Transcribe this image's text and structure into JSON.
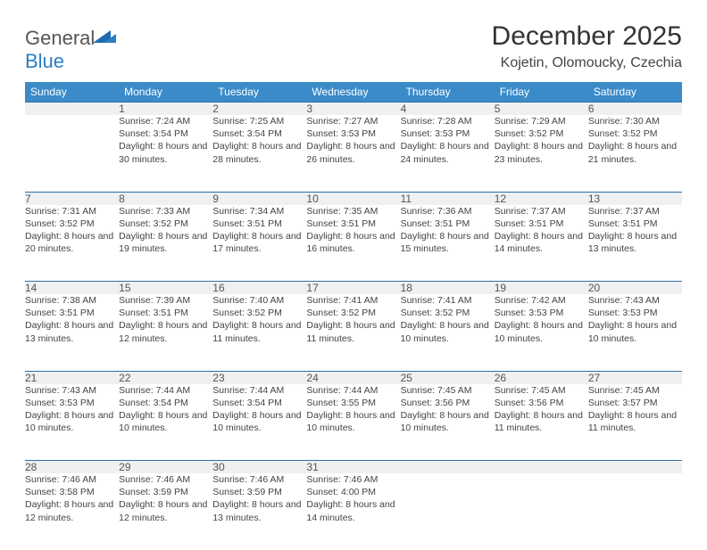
{
  "brand": {
    "part1": "General",
    "part2": "Blue"
  },
  "title": "December 2025",
  "location": "Kojetin, Olomoucky, Czechia",
  "colors": {
    "header_bg": "#3b8bc9",
    "header_text": "#ffffff",
    "daynum_bg": "#eef0f2",
    "row_border": "#2f6fa6",
    "body_text": "#444444",
    "brand_blue": "#2b7fc4"
  },
  "weekdays": [
    "Sunday",
    "Monday",
    "Tuesday",
    "Wednesday",
    "Thursday",
    "Friday",
    "Saturday"
  ],
  "weeks": [
    {
      "nums": [
        "",
        "1",
        "2",
        "3",
        "4",
        "5",
        "6"
      ],
      "cells": [
        "",
        "Sunrise: 7:24 AM\nSunset: 3:54 PM\nDaylight: 8 hours and 30 minutes.",
        "Sunrise: 7:25 AM\nSunset: 3:54 PM\nDaylight: 8 hours and 28 minutes.",
        "Sunrise: 7:27 AM\nSunset: 3:53 PM\nDaylight: 8 hours and 26 minutes.",
        "Sunrise: 7:28 AM\nSunset: 3:53 PM\nDaylight: 8 hours and 24 minutes.",
        "Sunrise: 7:29 AM\nSunset: 3:52 PM\nDaylight: 8 hours and 23 minutes.",
        "Sunrise: 7:30 AM\nSunset: 3:52 PM\nDaylight: 8 hours and 21 minutes."
      ]
    },
    {
      "nums": [
        "7",
        "8",
        "9",
        "10",
        "11",
        "12",
        "13"
      ],
      "cells": [
        "Sunrise: 7:31 AM\nSunset: 3:52 PM\nDaylight: 8 hours and 20 minutes.",
        "Sunrise: 7:33 AM\nSunset: 3:52 PM\nDaylight: 8 hours and 19 minutes.",
        "Sunrise: 7:34 AM\nSunset: 3:51 PM\nDaylight: 8 hours and 17 minutes.",
        "Sunrise: 7:35 AM\nSunset: 3:51 PM\nDaylight: 8 hours and 16 minutes.",
        "Sunrise: 7:36 AM\nSunset: 3:51 PM\nDaylight: 8 hours and 15 minutes.",
        "Sunrise: 7:37 AM\nSunset: 3:51 PM\nDaylight: 8 hours and 14 minutes.",
        "Sunrise: 7:37 AM\nSunset: 3:51 PM\nDaylight: 8 hours and 13 minutes."
      ]
    },
    {
      "nums": [
        "14",
        "15",
        "16",
        "17",
        "18",
        "19",
        "20"
      ],
      "cells": [
        "Sunrise: 7:38 AM\nSunset: 3:51 PM\nDaylight: 8 hours and 13 minutes.",
        "Sunrise: 7:39 AM\nSunset: 3:51 PM\nDaylight: 8 hours and 12 minutes.",
        "Sunrise: 7:40 AM\nSunset: 3:52 PM\nDaylight: 8 hours and 11 minutes.",
        "Sunrise: 7:41 AM\nSunset: 3:52 PM\nDaylight: 8 hours and 11 minutes.",
        "Sunrise: 7:41 AM\nSunset: 3:52 PM\nDaylight: 8 hours and 10 minutes.",
        "Sunrise: 7:42 AM\nSunset: 3:53 PM\nDaylight: 8 hours and 10 minutes.",
        "Sunrise: 7:43 AM\nSunset: 3:53 PM\nDaylight: 8 hours and 10 minutes."
      ]
    },
    {
      "nums": [
        "21",
        "22",
        "23",
        "24",
        "25",
        "26",
        "27"
      ],
      "cells": [
        "Sunrise: 7:43 AM\nSunset: 3:53 PM\nDaylight: 8 hours and 10 minutes.",
        "Sunrise: 7:44 AM\nSunset: 3:54 PM\nDaylight: 8 hours and 10 minutes.",
        "Sunrise: 7:44 AM\nSunset: 3:54 PM\nDaylight: 8 hours and 10 minutes.",
        "Sunrise: 7:44 AM\nSunset: 3:55 PM\nDaylight: 8 hours and 10 minutes.",
        "Sunrise: 7:45 AM\nSunset: 3:56 PM\nDaylight: 8 hours and 10 minutes.",
        "Sunrise: 7:45 AM\nSunset: 3:56 PM\nDaylight: 8 hours and 11 minutes.",
        "Sunrise: 7:45 AM\nSunset: 3:57 PM\nDaylight: 8 hours and 11 minutes."
      ]
    },
    {
      "nums": [
        "28",
        "29",
        "30",
        "31",
        "",
        "",
        ""
      ],
      "cells": [
        "Sunrise: 7:46 AM\nSunset: 3:58 PM\nDaylight: 8 hours and 12 minutes.",
        "Sunrise: 7:46 AM\nSunset: 3:59 PM\nDaylight: 8 hours and 12 minutes.",
        "Sunrise: 7:46 AM\nSunset: 3:59 PM\nDaylight: 8 hours and 13 minutes.",
        "Sunrise: 7:46 AM\nSunset: 4:00 PM\nDaylight: 8 hours and 14 minutes.",
        "",
        "",
        ""
      ]
    }
  ]
}
